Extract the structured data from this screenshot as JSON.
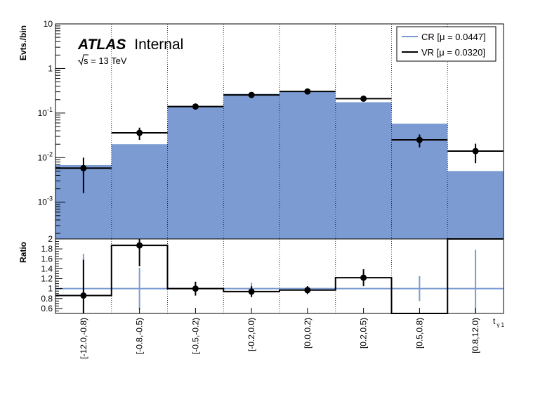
{
  "chart_data": {
    "type": "histogram",
    "categories": [
      "[-12.0,-0.8)",
      "[-0.8,-0.5)",
      "[-0.5,-0.2)",
      "[-0.2,0.0)",
      "[0.0,0.2)",
      "[0.2,0.5)",
      "[0.5,0.8)",
      "[0.8,12.0)"
    ],
    "x_label": "t",
    "x_label_sub": "γ 1",
    "top_panel": {
      "ylabel": "Evts./bin",
      "yscale": "log",
      "ylim": [
        0.00015,
        10
      ],
      "y_ticks": [
        0.001,
        0.01,
        0.1,
        1,
        10
      ],
      "y_tick_labels": [
        {
          "base": "10",
          "exp": "-3"
        },
        {
          "base": "10",
          "exp": "-2"
        },
        {
          "base": "10",
          "exp": "-1"
        },
        {
          "base": "1",
          "exp": ""
        },
        {
          "base": "10",
          "exp": ""
        }
      ],
      "series": [
        {
          "name": "CR [μ = 0.0447]",
          "style": "filled",
          "color": "#7b9bd2",
          "values": [
            0.0068,
            0.02,
            0.145,
            0.27,
            0.31,
            0.175,
            0.058,
            0.005
          ]
        },
        {
          "name": "VR [μ = 0.0320]",
          "style": "points",
          "color": "#000000",
          "values": [
            0.0058,
            0.036,
            0.14,
            0.255,
            0.305,
            0.21,
            0.025,
            0.014
          ],
          "err_low": [
            0.0042,
            0.011,
            0.012,
            0.02,
            0.022,
            0.018,
            0.008,
            0.0065
          ],
          "err_high": [
            0.0042,
            0.011,
            0.012,
            0.02,
            0.022,
            0.018,
            0.008,
            0.0065
          ]
        }
      ]
    },
    "bottom_panel": {
      "ylabel": "Ratio",
      "ylim": [
        0.5,
        2.0
      ],
      "y_ticks": [
        0.6,
        0.8,
        1,
        1.2,
        1.4,
        1.6,
        1.8,
        2
      ],
      "y_tick_labels": [
        "0.6",
        "0.8",
        "1",
        "1.2",
        "1.4",
        "1.6",
        "1.8",
        "2"
      ],
      "cr_ratio": {
        "values": [
          1,
          1,
          1,
          1,
          1,
          1,
          1,
          1
        ],
        "err": [
          0.7,
          0.42,
          0.0,
          0.12,
          0.02,
          0.0,
          0.25,
          0.78
        ],
        "color": "#7b9bd2"
      },
      "vr_ratio": {
        "values": [
          0.86,
          1.87,
          1.0,
          0.94,
          0.97,
          1.22,
          0.5,
          2.0
        ],
        "err": [
          0.72,
          0.42,
          0.14,
          0.11,
          0.08,
          0.17,
          0.0,
          0.0
        ],
        "show_marker": [
          true,
          true,
          true,
          true,
          true,
          true,
          false,
          false
        ]
      }
    },
    "annotations": {
      "experiment": "ATLAS",
      "status": "Internal",
      "energy_prefix": "s",
      "energy_suffix": " = 13 TeV"
    },
    "legend_position": "top-right"
  }
}
